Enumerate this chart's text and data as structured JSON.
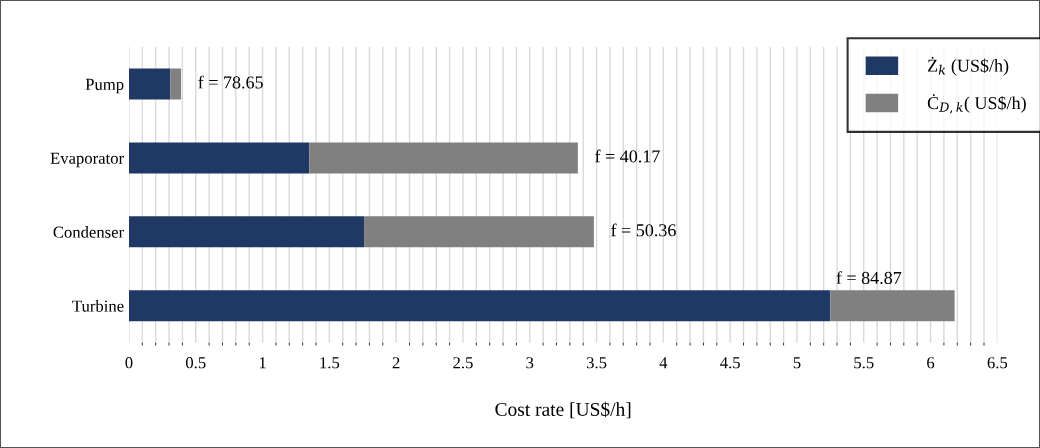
{
  "chart_data": {
    "type": "bar",
    "orientation": "horizontal",
    "stacked": true,
    "categories": [
      "Pump",
      "Evaporator",
      "Condenser",
      "Turbine"
    ],
    "series": [
      {
        "name": "Ż$_{k}$ (US$/h)",
        "color": "#1f3864",
        "values": [
          0.31,
          1.35,
          1.76,
          5.25
        ]
      },
      {
        "name": "Ċ$_{D,k}$( US$/h)",
        "color": "#808080",
        "values": [
          0.08,
          2.01,
          1.72,
          0.93
        ]
      }
    ],
    "xlabel": "Cost rate [US$/h]",
    "xlim": [
      0,
      6.5
    ],
    "xticks": [
      0,
      0.5,
      1,
      1.5,
      2,
      2.5,
      3,
      3.5,
      4,
      4.5,
      5,
      5.5,
      6,
      6.5
    ],
    "grid": "x",
    "legend": "top right",
    "annotations": [
      {
        "text": "f = 78.65",
        "x": 0.39,
        "y": "Pump"
      },
      {
        "text": "f = 40.17",
        "x": 3.36,
        "y": "Evaporator"
      },
      {
        "text": "f = 50.36",
        "x": 3.48,
        "y": "Condenser"
      },
      {
        "text": "f = 84.87",
        "x": 5.25,
        "y": "Turbine"
      }
    ]
  }
}
